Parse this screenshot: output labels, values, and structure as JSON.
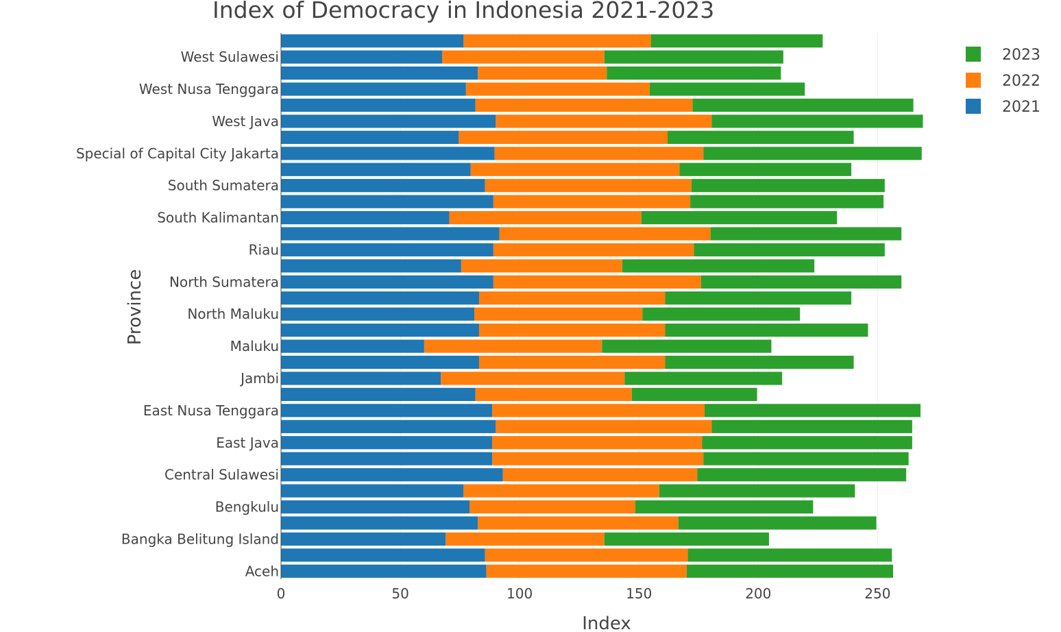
{
  "chart_data": {
    "type": "bar",
    "orientation": "horizontal",
    "barmode": "stack",
    "title": "Index of Democracy in Indonesia 2021-2023",
    "xlabel": "Index",
    "ylabel": "Province",
    "xlim": [
      0,
      270
    ],
    "x_ticks": [
      0,
      50,
      100,
      150,
      200,
      250
    ],
    "grid": "x-axis vertical gridlines",
    "legend_position": "top-right",
    "categories": [
      "Aceh",
      "",
      "Bangka Belitung Island",
      "",
      "Bengkulu",
      "",
      "Central Sulawesi",
      "",
      "East Java",
      "",
      "East Nusa Tenggara",
      "",
      "Jambi",
      "",
      "Maluku",
      "",
      "North Maluku",
      "",
      "North Sumatera",
      "",
      "Riau",
      "",
      "South Kalimantan",
      "",
      "South Sumatera",
      "",
      "Special of Capital City Jakarta",
      "",
      "West Java",
      "",
      "West Nusa Tenggara",
      "",
      "West Sulawesi",
      ""
    ],
    "series": [
      {
        "name": "2021",
        "color": "#1f77b4",
        "values": [
          86,
          85.5,
          69,
          82.5,
          79,
          76.5,
          93,
          88.5,
          88.5,
          90,
          88.5,
          81.5,
          67,
          83,
          60,
          83,
          81,
          83,
          89,
          75.5,
          89,
          91.5,
          70.5,
          89,
          85.5,
          79.5,
          89.5,
          74.5,
          90,
          81.5,
          77.5,
          82.5,
          67.5,
          76.5
        ]
      },
      {
        "name": "2022",
        "color": "#ff7f0e",
        "values": [
          84,
          85,
          66.5,
          84,
          69.5,
          82,
          81.5,
          88.5,
          88,
          90.5,
          89,
          65.5,
          77,
          78,
          74.5,
          78,
          70.5,
          78,
          87,
          67.5,
          84,
          88.5,
          80.5,
          82.5,
          86.5,
          87.5,
          87.5,
          87.5,
          90.5,
          91,
          77,
          54,
          68,
          78.5
        ]
      },
      {
        "name": "2023",
        "color": "#2ca02c",
        "values": [
          86.5,
          85.5,
          69,
          83,
          74.5,
          82,
          87.5,
          86,
          88,
          84,
          90.5,
          52.5,
          66,
          79,
          71,
          85,
          66,
          78,
          84,
          80.5,
          80,
          80,
          82,
          81,
          81,
          72,
          91.5,
          78,
          88.5,
          92.5,
          65,
          73,
          75,
          72
        ]
      }
    ]
  }
}
